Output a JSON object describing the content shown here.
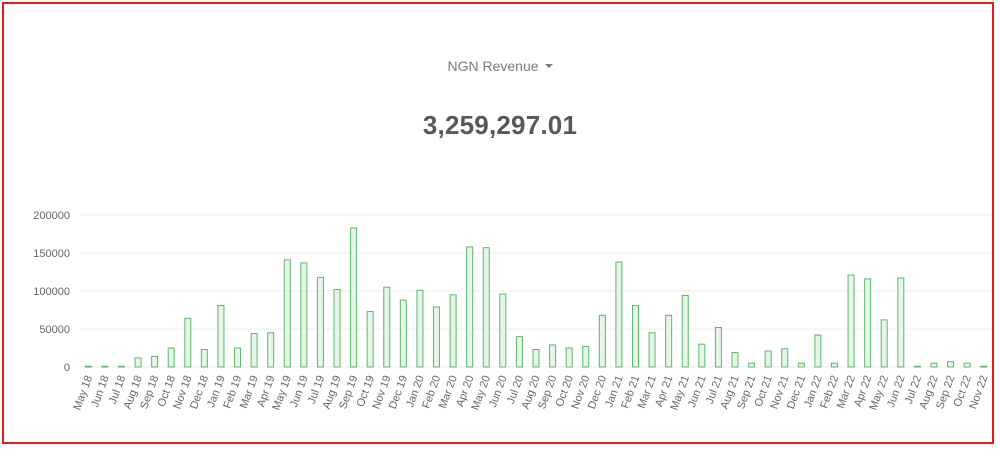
{
  "header": {
    "metric_label": "NGN Revenue",
    "metric_icon": "caret-down-icon",
    "total_value": "3,259,297.01"
  },
  "colors": {
    "bar_stroke": "#5cb86c",
    "bar_fill": "#e6f5e8",
    "grid": "#eeeeee",
    "axis_text": "#666666",
    "frame": "#e31b1b"
  },
  "chart_data": {
    "type": "bar",
    "title": "NGN Revenue",
    "subtitle": "3,259,297.01",
    "xlabel": "",
    "ylabel": "",
    "ylim": [
      0,
      200000
    ],
    "yticks": [
      0,
      50000,
      100000,
      150000,
      200000
    ],
    "ytick_labels": [
      "0",
      "50000",
      "100000",
      "150000",
      "200000"
    ],
    "grid": true,
    "legend": null,
    "categories": [
      "May 18",
      "Jun 18",
      "Jul 18",
      "Aug 18",
      "Sep 18",
      "Oct 18",
      "Nov 18",
      "Dec 18",
      "Jan 19",
      "Feb 19",
      "Mar 19",
      "Apr 19",
      "May 19",
      "Jun 19",
      "Jul 19",
      "Aug 19",
      "Sep 19",
      "Oct 19",
      "Nov 19",
      "Dec 19",
      "Jan 20",
      "Feb 20",
      "Mar 20",
      "Apr 20",
      "May 20",
      "Jun 20",
      "Jul 20",
      "Aug 20",
      "Sep 20",
      "Oct 20",
      "Nov 20",
      "Dec 20",
      "Jan 21",
      "Feb 21",
      "Mar 21",
      "Apr 21",
      "May 21",
      "Jun 21",
      "Jul 21",
      "Aug 21",
      "Sep 21",
      "Oct 21",
      "Nov 21",
      "Dec 21",
      "Jan 22",
      "Feb 22",
      "Mar 22",
      "Apr 22",
      "May 22",
      "Jun 22",
      "Jul 22",
      "Aug 22",
      "Sep 22",
      "Oct 22",
      "Nov 22"
    ],
    "values": [
      300,
      300,
      300,
      12000,
      14000,
      25000,
      64000,
      23000,
      81000,
      25000,
      44000,
      45000,
      141000,
      137000,
      118000,
      102000,
      183000,
      73000,
      105000,
      88000,
      101000,
      79000,
      95000,
      158000,
      157000,
      96000,
      40000,
      23000,
      29000,
      25000,
      27000,
      68000,
      138000,
      81000,
      45000,
      68000,
      94000,
      30000,
      52000,
      19000,
      5000,
      21000,
      24000,
      5000,
      42000,
      5000,
      121000,
      116000,
      62000,
      117000,
      300,
      5000,
      7000,
      5000,
      300
    ]
  }
}
